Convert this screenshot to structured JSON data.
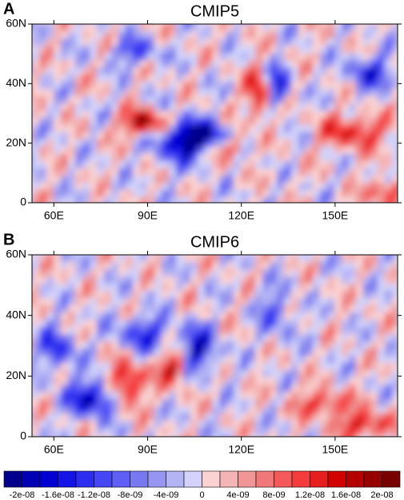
{
  "panels": [
    {
      "letter": "A",
      "title": "CMIP5"
    },
    {
      "letter": "B",
      "title": "CMIP6"
    }
  ],
  "axes": {
    "xlim": [
      53,
      170
    ],
    "ylim": [
      0,
      60
    ],
    "xticks": [
      {
        "value": 60,
        "label": "60E"
      },
      {
        "value": 90,
        "label": "90E"
      },
      {
        "value": 120,
        "label": "120E"
      },
      {
        "value": 150,
        "label": "150E"
      }
    ],
    "yticks": [
      0,
      {
        "value": 20,
        "label": "20N"
      },
      {
        "value": 40,
        "label": "40N"
      },
      {
        "value": 60,
        "label": "60N"
      }
    ]
  },
  "colorbar": {
    "colors": [
      "#00008c",
      "#0000b4",
      "#0000d2",
      "#1414e6",
      "#2d2df0",
      "#4646f5",
      "#5f5ff5",
      "#7878f0",
      "#9696f0",
      "#b4b4f5",
      "#d2d2fa",
      "#fad2d2",
      "#f5b4b4",
      "#f09696",
      "#f07878",
      "#f55a5a",
      "#f53c3c",
      "#e61e1e",
      "#d20000",
      "#b40000",
      "#960000",
      "#780000"
    ],
    "ticks": [
      {
        "value": -2e-08,
        "label": "-2e-08"
      },
      {
        "value": -1.6e-08,
        "label": "-1.6e-08"
      },
      {
        "value": -1.2e-08,
        "label": "-1.2e-08"
      },
      {
        "value": -8e-09,
        "label": "-8e-09"
      },
      {
        "value": -4e-09,
        "label": "-4e-09"
      },
      0,
      {
        "value": 4e-09,
        "label": "4e-09"
      },
      {
        "value": 8e-09,
        "label": "8e-09"
      },
      {
        "value": 1.2e-08,
        "label": "1.2e-08"
      },
      {
        "value": 1.6e-08,
        "label": "1.6e-08"
      },
      {
        "value": 2e-08,
        "label": "2e-08"
      }
    ]
  }
}
